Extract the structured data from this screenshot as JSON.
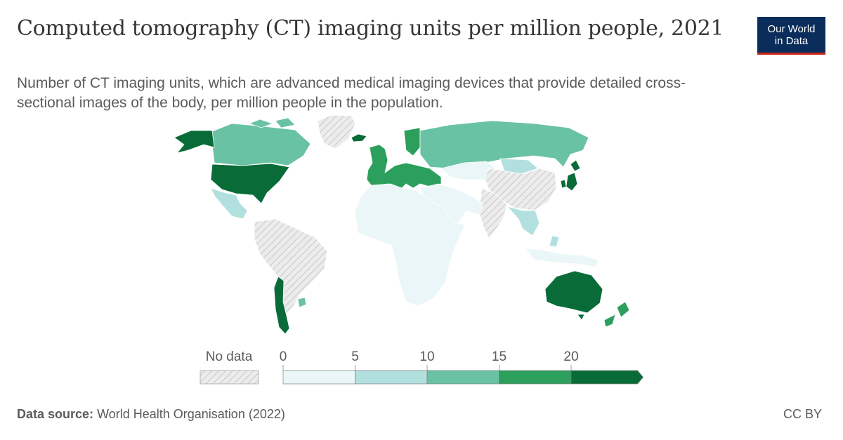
{
  "title": "Computed tomography (CT) imaging units per million people, 2021",
  "subtitle": "Number of CT imaging units, which are advanced medical imaging devices that provide detailed cross-sectional images of the body, per million people in the population.",
  "logo": {
    "line1": "Our World",
    "line2": "in Data"
  },
  "legend": {
    "no_data_label": "No data",
    "ticks": [
      "0",
      "5",
      "10",
      "15",
      "20"
    ],
    "bins": [
      {
        "from": 0,
        "to": 5,
        "color": "#eaf6f8"
      },
      {
        "from": 5,
        "to": 10,
        "color": "#b1e0df"
      },
      {
        "from": 10,
        "to": 15,
        "color": "#68c2a3"
      },
      {
        "from": 15,
        "to": 20,
        "color": "#2c9f5d"
      },
      {
        "from": 20,
        "to": null,
        "color": "#096b38"
      }
    ]
  },
  "regions": [
    {
      "name": "Canada",
      "bin": 2
    },
    {
      "name": "United States",
      "bin": 4
    },
    {
      "name": "Alaska",
      "bin": 4
    },
    {
      "name": "Mexico",
      "bin": 1
    },
    {
      "name": "Greenland",
      "bin": null
    },
    {
      "name": "South America",
      "bin": null
    },
    {
      "name": "Chile",
      "bin": 4
    },
    {
      "name": "Uruguay",
      "bin": 2
    },
    {
      "name": "Europe",
      "bin": 3
    },
    {
      "name": "Iceland",
      "bin": 4
    },
    {
      "name": "Russia",
      "bin": 2
    },
    {
      "name": "Kazakhstan",
      "bin": 0
    },
    {
      "name": "Mongolia",
      "bin": 1
    },
    {
      "name": "China",
      "bin": null
    },
    {
      "name": "India",
      "bin": null
    },
    {
      "name": "Middle East",
      "bin": 0
    },
    {
      "name": "Libya",
      "bin": 1
    },
    {
      "name": "Africa",
      "bin": 0
    },
    {
      "name": "Japan",
      "bin": 4
    },
    {
      "name": "South Korea",
      "bin": 4
    },
    {
      "name": "Southeast Asia",
      "bin": 1
    },
    {
      "name": "Indonesia",
      "bin": 0
    },
    {
      "name": "Australia",
      "bin": 4
    },
    {
      "name": "New Zealand",
      "bin": 3
    }
  ],
  "footer": {
    "source_label": "Data source:",
    "source_text": "World Health Organisation (2022)"
  },
  "license": "CC BY",
  "colors": {
    "no_data": "#e8e8e8",
    "no_data_hatch": "#c9c9c9",
    "border": "#ffffff"
  }
}
